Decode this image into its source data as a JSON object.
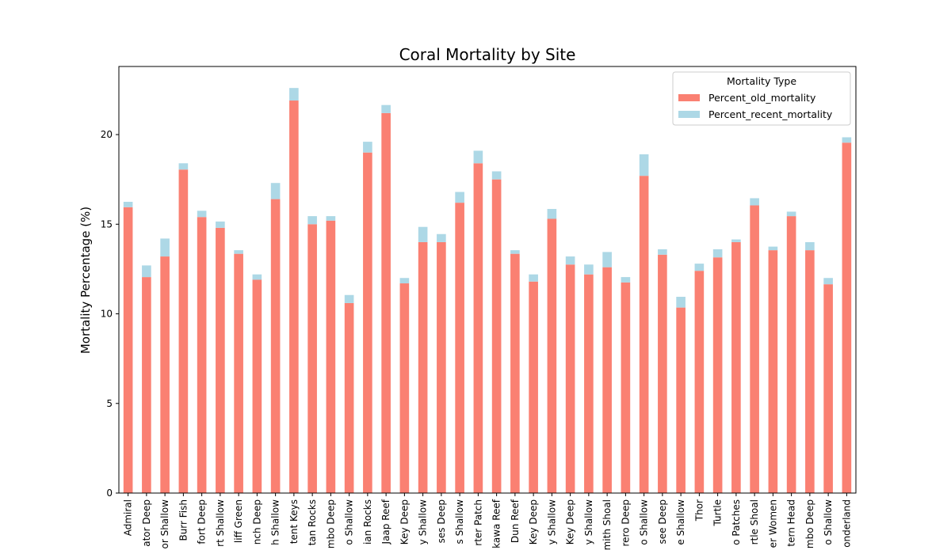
{
  "chart_data": {
    "type": "bar",
    "stacked": true,
    "title": "Coral Mortality by Site",
    "xlabel": "",
    "ylabel": "Mortality Percentage (%)",
    "ylim": [
      0,
      23.8
    ],
    "yticks": [
      0,
      5,
      10,
      15,
      20
    ],
    "grid": false,
    "legend": {
      "title": "Mortality Type",
      "placement": "top-right"
    },
    "categories": [
      "Admiral",
      "ator Deep",
      "or Shallow",
      "Burr Fish",
      "fort Deep",
      "rt Shallow",
      "liff Green",
      "nch Deep",
      "h Shallow",
      "tent Keys",
      "tan Rocks",
      "mbo Deep",
      "o Shallow",
      "ian Rocks",
      "Jaap Reef",
      "Key Deep",
      "y Shallow",
      "ses Deep",
      "s Shallow",
      "rter Patch",
      "kawa Reef",
      "Dun Reef",
      "Key Deep",
      "y Shallow",
      "Key Deep",
      "y Shallow",
      "mith Shoal",
      "rero Deep",
      "o Shallow",
      "see Deep",
      "e Shallow",
      "Thor",
      "Turtle",
      "o Patches",
      "rtle Shoal",
      "er Women",
      "tern Head",
      "mbo Deep",
      "o Shallow",
      "onderland"
    ],
    "series": [
      {
        "name": "Percent_old_mortality",
        "color": "#fa8072",
        "values": [
          15.95,
          12.05,
          13.2,
          18.05,
          15.4,
          14.8,
          13.35,
          11.9,
          16.4,
          21.9,
          15.0,
          15.2,
          10.6,
          19.0,
          21.2,
          11.7,
          14.0,
          14.0,
          16.2,
          18.4,
          17.5,
          13.35,
          11.8,
          15.3,
          12.75,
          12.2,
          12.6,
          11.75,
          17.7,
          13.3,
          10.35,
          12.4,
          13.15,
          14.0,
          16.05,
          13.55,
          15.45,
          13.55,
          11.65,
          19.55
        ]
      },
      {
        "name": "Percent_recent_mortality",
        "color": "#add8e6",
        "values": [
          0.3,
          0.65,
          1.0,
          0.35,
          0.35,
          0.35,
          0.2,
          0.3,
          0.9,
          0.7,
          0.45,
          0.25,
          0.45,
          0.6,
          0.45,
          0.3,
          0.85,
          0.45,
          0.6,
          0.7,
          0.45,
          0.2,
          0.4,
          0.55,
          0.45,
          0.55,
          0.85,
          0.3,
          1.2,
          0.3,
          0.6,
          0.4,
          0.45,
          0.15,
          0.4,
          0.2,
          0.25,
          0.45,
          0.35,
          0.3
        ]
      }
    ]
  }
}
